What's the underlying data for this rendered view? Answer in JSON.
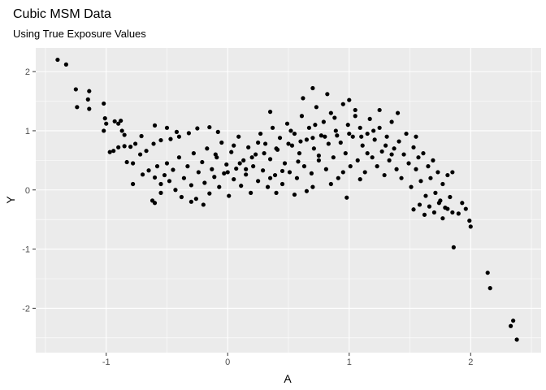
{
  "chart_data": {
    "type": "scatter",
    "title": "Cubic MSM Data",
    "subtitle": "Using True Exposure Values",
    "xlabel": "A",
    "ylabel": "Y",
    "xlim": [
      -1.58,
      2.58
    ],
    "ylim": [
      -2.75,
      2.4
    ],
    "xticks": [
      -1,
      0,
      1,
      2
    ],
    "xtick_labels": [
      "-1",
      "0",
      "1",
      "2"
    ],
    "yticks": [
      -2,
      -1,
      0,
      1,
      2
    ],
    "ytick_labels": [
      "-2",
      "-1",
      "0",
      "1",
      "2"
    ],
    "grid": true,
    "colors": {
      "panel": "#ebebeb",
      "grid": "#ffffff",
      "point": "#000000",
      "tick": "#4d4d4d"
    },
    "points": [
      [
        -1.4,
        2.2
      ],
      [
        -1.33,
        2.12
      ],
      [
        -1.25,
        1.7
      ],
      [
        -1.14,
        1.67
      ],
      [
        -1.15,
        1.53
      ],
      [
        -1.24,
        1.4
      ],
      [
        -1.14,
        1.37
      ],
      [
        -1.02,
        1.46
      ],
      [
        -1.01,
        1.21
      ],
      [
        -1.0,
        1.12
      ],
      [
        -0.93,
        1.16
      ],
      [
        -0.88,
        1.17
      ],
      [
        -0.9,
        1.12
      ],
      [
        -1.02,
        1.0
      ],
      [
        -0.87,
        1.0
      ],
      [
        -0.85,
        0.93
      ],
      [
        -0.97,
        0.64
      ],
      [
        -0.94,
        0.66
      ],
      [
        -0.9,
        0.72
      ],
      [
        -0.85,
        0.74
      ],
      [
        -0.8,
        0.73
      ],
      [
        -0.76,
        0.78
      ],
      [
        -0.71,
        0.91
      ],
      [
        -0.83,
        0.47
      ],
      [
        -0.78,
        0.45
      ],
      [
        -0.72,
        0.6
      ],
      [
        -0.67,
        0.66
      ],
      [
        -0.61,
        0.78
      ],
      [
        -0.55,
        0.84
      ],
      [
        -0.47,
        0.86
      ],
      [
        -0.4,
        0.9
      ],
      [
        -0.32,
        0.96
      ],
      [
        -0.25,
        1.04
      ],
      [
        -0.15,
        1.06
      ],
      [
        -0.08,
        0.98
      ],
      [
        -0.6,
        1.09
      ],
      [
        -0.5,
        1.05
      ],
      [
        -0.42,
        0.98
      ],
      [
        -0.7,
        0.26
      ],
      [
        -0.65,
        0.33
      ],
      [
        -0.6,
        0.21
      ],
      [
        -0.58,
        0.4
      ],
      [
        -0.55,
        0.1
      ],
      [
        -0.55,
        -0.05
      ],
      [
        -0.52,
        0.25
      ],
      [
        -0.5,
        0.45
      ],
      [
        -0.48,
        0.15
      ],
      [
        -0.45,
        0.34
      ],
      [
        -0.43,
        0.0
      ],
      [
        -0.4,
        0.55
      ],
      [
        -0.38,
        -0.12
      ],
      [
        -0.36,
        0.2
      ],
      [
        -0.33,
        0.4
      ],
      [
        -0.3,
        0.08
      ],
      [
        -0.28,
        0.62
      ],
      [
        -0.26,
        -0.15
      ],
      [
        -0.24,
        0.3
      ],
      [
        -0.21,
        0.47
      ],
      [
        -0.19,
        0.12
      ],
      [
        -0.17,
        0.7
      ],
      [
        -0.15,
        -0.06
      ],
      [
        -0.13,
        0.35
      ],
      [
        -0.11,
        0.22
      ],
      [
        -0.09,
        0.55
      ],
      [
        -0.07,
        0.05
      ],
      [
        -0.05,
        0.8
      ],
      [
        -0.03,
        0.28
      ],
      [
        -0.01,
        0.43
      ],
      [
        0.01,
        -0.1
      ],
      [
        0.03,
        0.64
      ],
      [
        0.05,
        0.18
      ],
      [
        0.07,
        0.36
      ],
      [
        0.09,
        0.9
      ],
      [
        0.11,
        0.07
      ],
      [
        0.13,
        0.5
      ],
      [
        0.15,
        0.26
      ],
      [
        0.17,
        0.72
      ],
      [
        0.19,
        -0.05
      ],
      [
        0.21,
        0.4
      ],
      [
        0.23,
        0.6
      ],
      [
        0.25,
        0.15
      ],
      [
        0.27,
        0.95
      ],
      [
        0.29,
        0.33
      ],
      [
        0.31,
        0.78
      ],
      [
        0.33,
        0.05
      ],
      [
        0.35,
        0.52
      ],
      [
        0.37,
        1.05
      ],
      [
        0.39,
        0.25
      ],
      [
        0.41,
        0.68
      ],
      [
        0.43,
        0.88
      ],
      [
        0.45,
        0.1
      ],
      [
        0.47,
        0.45
      ],
      [
        0.49,
        1.12
      ],
      [
        0.51,
        0.3
      ],
      [
        0.53,
        0.75
      ],
      [
        0.55,
        0.95
      ],
      [
        0.57,
        0.2
      ],
      [
        0.59,
        0.62
      ],
      [
        0.61,
        1.25
      ],
      [
        0.63,
        0.4
      ],
      [
        0.65,
        0.85
      ],
      [
        0.67,
        1.05
      ],
      [
        0.69,
        0.28
      ],
      [
        0.71,
        0.7
      ],
      [
        0.73,
        1.4
      ],
      [
        0.75,
        0.5
      ],
      [
        0.77,
        0.92
      ],
      [
        0.79,
        1.15
      ],
      [
        0.81,
        0.35
      ],
      [
        0.83,
        0.78
      ],
      [
        0.85,
        1.3
      ],
      [
        0.87,
        0.55
      ],
      [
        0.89,
        1.0
      ],
      [
        0.91,
        0.2
      ],
      [
        0.93,
        0.8
      ],
      [
        0.95,
        1.45
      ],
      [
        0.97,
        0.62
      ],
      [
        0.99,
        1.1
      ],
      [
        1.01,
        0.4
      ],
      [
        1.03,
        0.9
      ],
      [
        1.05,
        1.25
      ],
      [
        1.07,
        0.5
      ],
      [
        1.09,
        1.05
      ],
      [
        1.11,
        0.75
      ],
      [
        1.13,
        0.3
      ],
      [
        1.15,
        0.95
      ],
      [
        1.17,
        1.2
      ],
      [
        1.19,
        0.55
      ],
      [
        1.21,
        0.85
      ],
      [
        1.23,
        0.4
      ],
      [
        1.25,
        1.05
      ],
      [
        1.27,
        0.65
      ],
      [
        1.29,
        0.25
      ],
      [
        1.31,
        0.9
      ],
      [
        1.33,
        0.5
      ],
      [
        1.35,
        1.15
      ],
      [
        1.37,
        0.7
      ],
      [
        1.39,
        0.35
      ],
      [
        1.41,
        0.82
      ],
      [
        1.43,
        0.2
      ],
      [
        1.45,
        0.6
      ],
      [
        1.47,
        0.95
      ],
      [
        1.49,
        0.45
      ],
      [
        1.51,
        0.05
      ],
      [
        1.53,
        0.72
      ],
      [
        1.55,
        0.35
      ],
      [
        1.57,
        0.55
      ],
      [
        1.59,
        0.15
      ],
      [
        1.61,
        0.62
      ],
      [
        1.63,
        -0.1
      ],
      [
        1.65,
        0.4
      ],
      [
        1.67,
        0.2
      ],
      [
        1.69,
        0.5
      ],
      [
        1.71,
        -0.05
      ],
      [
        1.73,
        0.3
      ],
      [
        1.75,
        -0.18
      ],
      [
        1.77,
        0.1
      ],
      [
        1.79,
        -0.3
      ],
      [
        1.81,
        0.25
      ],
      [
        1.83,
        -0.12
      ],
      [
        1.85,
        0.3
      ],
      [
        1.53,
        -0.33
      ],
      [
        1.58,
        -0.25
      ],
      [
        1.62,
        -0.42
      ],
      [
        1.66,
        -0.28
      ],
      [
        1.7,
        -0.38
      ],
      [
        1.74,
        -0.22
      ],
      [
        1.77,
        -0.48
      ],
      [
        1.81,
        -0.32
      ],
      [
        1.85,
        -0.38
      ],
      [
        1.9,
        -0.4
      ],
      [
        1.93,
        -0.22
      ],
      [
        1.96,
        -0.32
      ],
      [
        1.99,
        -0.52
      ],
      [
        2.0,
        -0.62
      ],
      [
        1.86,
        -0.97
      ],
      [
        2.14,
        -1.4
      ],
      [
        2.16,
        -1.66
      ],
      [
        2.35,
        -2.21
      ],
      [
        2.33,
        -2.3
      ],
      [
        2.38,
        -2.53
      ],
      [
        0.0,
        0.3
      ],
      [
        0.1,
        0.45
      ],
      [
        0.2,
        0.55
      ],
      [
        0.3,
        0.62
      ],
      [
        0.4,
        0.7
      ],
      [
        0.5,
        0.78
      ],
      [
        0.6,
        0.82
      ],
      [
        0.7,
        0.88
      ],
      [
        0.8,
        0.9
      ],
      [
        0.9,
        0.92
      ],
      [
        1.0,
        0.95
      ],
      [
        1.1,
        0.9
      ],
      [
        0.7,
        1.72
      ],
      [
        0.82,
        1.62
      ],
      [
        1.0,
        1.52
      ],
      [
        0.62,
        1.55
      ],
      [
        0.35,
        1.32
      ],
      [
        1.55,
        0.9
      ],
      [
        1.4,
        1.3
      ],
      [
        1.25,
        1.35
      ],
      [
        0.55,
        -0.08
      ],
      [
        0.7,
        0.05
      ],
      [
        0.85,
        0.1
      ],
      [
        -0.62,
        -0.18
      ],
      [
        -0.78,
        0.1
      ],
      [
        -0.6,
        -0.22
      ],
      [
        -0.3,
        -0.2
      ],
      [
        -0.2,
        -0.25
      ],
      [
        0.4,
        -0.05
      ],
      [
        0.65,
        -0.02
      ],
      [
        0.98,
        -0.13
      ],
      [
        1.09,
        0.18
      ],
      [
        0.25,
        0.8
      ],
      [
        0.45,
        0.32
      ],
      [
        0.58,
        0.48
      ],
      [
        0.75,
        0.58
      ],
      [
        0.95,
        0.3
      ],
      [
        1.15,
        0.62
      ],
      [
        1.3,
        0.75
      ],
      [
        -0.1,
        0.6
      ],
      [
        0.05,
        0.75
      ],
      [
        0.15,
        0.35
      ],
      [
        0.35,
        0.2
      ],
      [
        0.52,
        1.0
      ],
      [
        0.72,
        1.1
      ],
      [
        0.88,
        1.22
      ],
      [
        1.05,
        1.35
      ],
      [
        1.2,
        1.0
      ],
      [
        1.35,
        0.6
      ]
    ]
  }
}
